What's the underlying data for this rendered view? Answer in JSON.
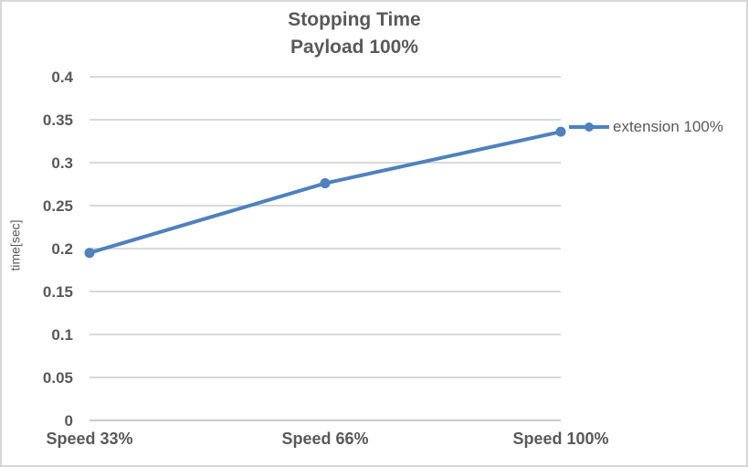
{
  "chart": {
    "title_line1": "Stopping Time",
    "title_line2": "Payload 100%"
  },
  "chart_data": {
    "type": "line",
    "title": "Stopping Time",
    "subtitle": "Payload 100%",
    "categories": [
      "Speed 33%",
      "Speed 66%",
      "Speed 100%"
    ],
    "series": [
      {
        "name": "extension 100%",
        "values": [
          0.195,
          0.276,
          0.336
        ],
        "color": "#4e81bd"
      }
    ],
    "xlabel": "",
    "ylabel": "time[sec]",
    "ylim": [
      0,
      0.4
    ],
    "ytick_step": 0.05,
    "ytick_labels": [
      "0",
      "0.05",
      "0.1",
      "0.15",
      "0.2",
      "0.25",
      "0.3",
      "0.35",
      "0.4"
    ],
    "grid": true,
    "legend_position": "right",
    "colors": {
      "series": "#4e81bd",
      "gridline": "#d9d9d9",
      "axis_line": "#c9c9c9",
      "text": "#595959",
      "title": "#595959",
      "border": "#d7d7d7",
      "background": "#ffffff"
    }
  }
}
